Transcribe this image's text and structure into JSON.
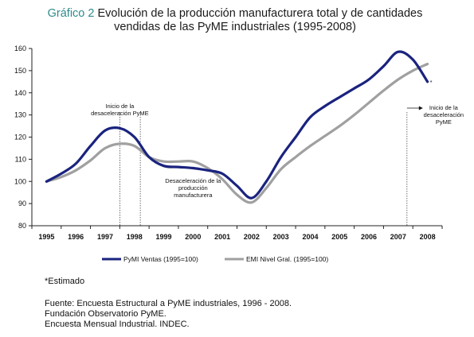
{
  "title": {
    "prefix": "Gráfico 2",
    "line1": "Evolución de la producción manufacturera total y de cantidades",
    "line2": "vendidas de las PyME industriales (1995-2008)"
  },
  "chart_data": {
    "type": "line",
    "x": [
      1995,
      1995.5,
      1996,
      1996.5,
      1997,
      1997.5,
      1998,
      1998.5,
      1999,
      1999.5,
      2000,
      2000.5,
      2001,
      2001.5,
      2002,
      2002.5,
      2003,
      2003.5,
      2004,
      2004.5,
      2005,
      2005.5,
      2006,
      2006.5,
      2007,
      2007.5,
      2008
    ],
    "categories": [
      "1995",
      "1996",
      "1997",
      "1998",
      "1999",
      "2000",
      "2001",
      "2002",
      "2003",
      "2004",
      "2005",
      "2006",
      "2007",
      "2008"
    ],
    "series": [
      {
        "name": "PyMI Ventas (1995=100)",
        "color": "#1a237e",
        "values": [
          100,
          103.5,
          108,
          116,
          123,
          124,
          120,
          111,
          107,
          106.5,
          106,
          105,
          103.5,
          98,
          92.5,
          100,
          111,
          120,
          129,
          134,
          138,
          142,
          146,
          152,
          158.5,
          155,
          145
        ]
      },
      {
        "name": "EMI Nivel Gral. (1995=100)",
        "color": "#a0a0a0",
        "values": [
          100,
          102,
          105,
          109.5,
          115,
          117,
          116,
          111,
          109,
          109,
          109,
          106,
          101,
          94,
          90.5,
          97,
          105.5,
          111,
          116,
          120.5,
          125,
          130,
          135.5,
          141,
          146,
          150,
          153
        ]
      }
    ],
    "ylim": [
      80,
      160
    ],
    "yticks": [
      80,
      90,
      100,
      110,
      120,
      130,
      140,
      150,
      160
    ],
    "grid": false,
    "legend": "bottom",
    "estimate_marker": "*",
    "vlines": [
      1997.5,
      1998.2,
      2007.3
    ],
    "annotations": {
      "inicio1": [
        "Inicio de la",
        "desaceleración PyME"
      ],
      "desacel": [
        "Desaceleración de la",
        "producción",
        "manufacturera"
      ],
      "inicio2": [
        "Inicio de la",
        "desaceleración",
        "PyME"
      ]
    }
  },
  "notes": {
    "estimado": "*Estimado",
    "fuente1": "Fuente: Encuesta Estructural a PyME industriales, 1996 - 2008.",
    "fuente2": "Fundación Observatorio PyME.",
    "fuente3": "Encuesta Mensual Industrial. INDEC."
  }
}
